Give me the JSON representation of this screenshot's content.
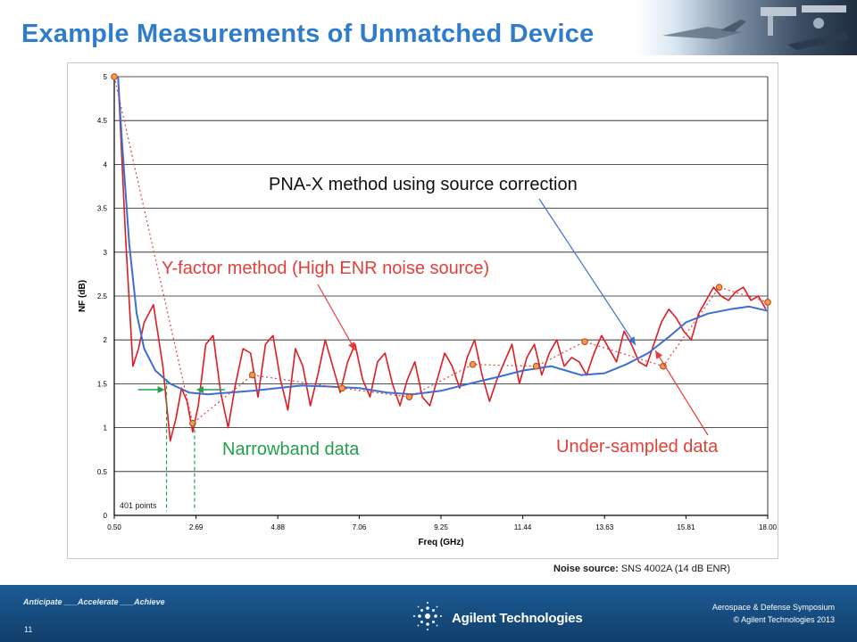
{
  "slide": {
    "title": "Example Measurements of Unmatched Device",
    "noise_source_label": "Noise source:",
    "noise_source_value": "SNS 4002A (14 dB ENR)"
  },
  "annotations": {
    "pna_method": "PNA-X method using source correction",
    "y_factor": "Y-factor method (High ENR noise source)",
    "narrowband": "Narrowband data",
    "undersampled": "Under-sampled data",
    "points_count": "401 points"
  },
  "footer": {
    "tagline": "Anticipate ___Accelerate ___Achieve",
    "page_number": "11",
    "company": "Agilent Technologies",
    "event": "Aerospace & Defense Symposium",
    "copyright": "© Agilent Technologies 2013"
  },
  "colors": {
    "title": "#2f7ccc",
    "y_factor_trace": "#e01b22",
    "pna_trace": "#3b6fd1",
    "undersampled_line": "#e2403a",
    "narrowband": "#22a04b",
    "footer": "#16497c"
  },
  "chart_data": {
    "type": "line",
    "xlabel": "Freq (GHz)",
    "ylabel": "NF (dB)",
    "xlim": [
      0.5,
      18.0
    ],
    "ylim": [
      0,
      5
    ],
    "x_ticks": [
      "0.50",
      "2.69",
      "4.88",
      "7.06",
      "9.25",
      "11.44",
      "13.63",
      "15.81",
      "18.00"
    ],
    "y_ticks": [
      "0",
      "0.5",
      "1",
      "1.5",
      "2",
      "2.5",
      "3",
      "3.5",
      "4",
      "4.5",
      "5"
    ],
    "grid": "horizontal",
    "series": [
      {
        "style": "red-oscillating",
        "x": [
          0.6,
          0.8,
          1.0,
          1.15,
          1.3,
          1.55,
          1.8,
          2.0,
          2.15,
          2.3,
          2.45,
          2.6,
          2.75,
          2.95,
          3.15,
          3.35,
          3.55,
          3.75,
          3.95,
          4.15,
          4.35,
          4.55,
          4.75,
          4.95,
          5.15,
          5.35,
          5.55,
          5.75,
          5.95,
          6.15,
          6.35,
          6.55,
          6.75,
          6.95,
          7.15,
          7.35,
          7.55,
          7.75,
          7.95,
          8.15,
          8.35,
          8.55,
          8.75,
          8.95,
          9.15,
          9.35,
          9.55,
          9.75,
          9.95,
          10.15,
          10.35,
          10.55,
          10.75,
          10.95,
          11.15,
          11.35,
          11.55,
          11.75,
          11.95,
          12.15,
          12.35,
          12.55,
          12.75,
          12.95,
          13.15,
          13.35,
          13.55,
          13.75,
          13.95,
          14.15,
          14.35,
          14.55,
          14.75,
          14.95,
          15.15,
          15.35,
          15.55,
          15.75,
          15.95,
          16.15,
          16.35,
          16.55,
          16.75,
          16.95,
          17.15,
          17.35,
          17.55,
          17.75,
          17.95
        ],
        "values": [
          5.0,
          3.2,
          1.7,
          1.9,
          2.2,
          2.4,
          1.7,
          0.85,
          1.1,
          1.45,
          1.3,
          0.95,
          1.25,
          1.95,
          2.05,
          1.4,
          1.0,
          1.5,
          1.9,
          1.85,
          1.35,
          1.95,
          2.05,
          1.55,
          1.2,
          1.9,
          1.7,
          1.25,
          1.6,
          2.0,
          1.7,
          1.4,
          1.75,
          1.95,
          1.55,
          1.35,
          1.75,
          1.85,
          1.5,
          1.25,
          1.55,
          1.75,
          1.35,
          1.25,
          1.55,
          1.85,
          1.7,
          1.45,
          1.8,
          2.0,
          1.6,
          1.3,
          1.55,
          1.75,
          1.95,
          1.5,
          1.8,
          1.95,
          1.6,
          1.85,
          2.0,
          1.7,
          1.8,
          1.75,
          1.6,
          1.85,
          2.05,
          1.9,
          1.75,
          2.1,
          1.95,
          1.75,
          1.7,
          1.95,
          2.2,
          2.35,
          2.25,
          2.1,
          2.0,
          2.3,
          2.45,
          2.6,
          2.5,
          2.45,
          2.55,
          2.6,
          2.45,
          2.5,
          2.35
        ]
      },
      {
        "style": "blue-smooth",
        "x": [
          0.6,
          0.7,
          0.9,
          1.1,
          1.3,
          1.6,
          2.0,
          2.5,
          3.0,
          3.6,
          4.2,
          4.88,
          5.5,
          6.2,
          7.06,
          7.8,
          8.5,
          9.25,
          10.0,
          10.8,
          11.44,
          12.2,
          13.0,
          13.63,
          14.2,
          14.8,
          15.4,
          15.81,
          16.4,
          17.0,
          17.5,
          18.0
        ],
        "values": [
          5.0,
          4.3,
          3.1,
          2.3,
          1.9,
          1.65,
          1.5,
          1.4,
          1.38,
          1.4,
          1.42,
          1.45,
          1.48,
          1.47,
          1.45,
          1.4,
          1.38,
          1.42,
          1.5,
          1.58,
          1.65,
          1.7,
          1.6,
          1.62,
          1.72,
          1.85,
          2.05,
          2.2,
          2.3,
          2.35,
          2.38,
          2.33
        ]
      },
      {
        "style": "red-dotted-undersampled",
        "x": [
          0.5,
          2.6,
          4.2,
          6.6,
          8.4,
          10.1,
          11.8,
          13.1,
          15.2,
          16.7,
          18.0
        ],
        "values": [
          5.0,
          1.05,
          1.6,
          1.45,
          1.35,
          1.72,
          1.7,
          1.98,
          1.7,
          2.6,
          2.43
        ]
      }
    ]
  }
}
